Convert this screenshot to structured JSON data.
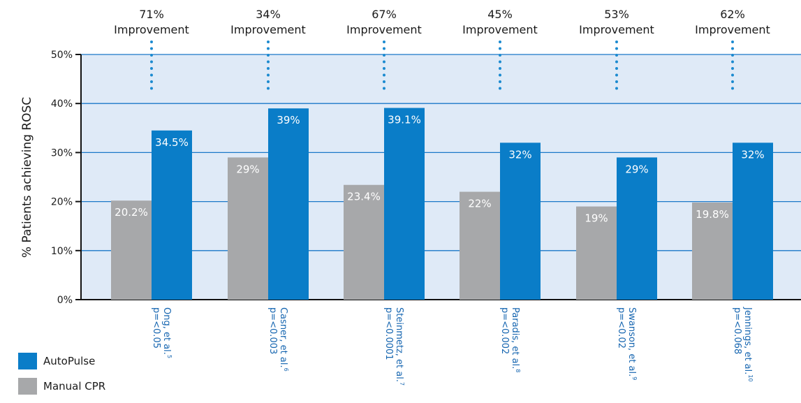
{
  "chart_data": {
    "type": "bar",
    "ylabel": "% Patients achieving ROSC",
    "ylim": [
      0,
      50
    ],
    "yticks": [
      {
        "value": 0,
        "label": "0%"
      },
      {
        "value": 10,
        "label": "10%"
      },
      {
        "value": 20,
        "label": "20%"
      },
      {
        "value": 30,
        "label": "30%"
      },
      {
        "value": 40,
        "label": "40%"
      },
      {
        "value": 50,
        "label": "50%"
      }
    ],
    "grid": true,
    "legend_position": "bottom-left",
    "colors": {
      "plot_background": "#dfeaf7",
      "gridline": "#1b78c8",
      "axis": "#111111",
      "dotted_connector": "#1b8ad0"
    },
    "categories": [
      {
        "name": "Ong, et al.",
        "ref": "5",
        "p": "p=<0.05",
        "improvement_pct": "71%",
        "improvement_word": "Improvement"
      },
      {
        "name": "Casner, et al.",
        "ref": "6",
        "p": "p=<0.003",
        "improvement_pct": "34%",
        "improvement_word": "Improvement"
      },
      {
        "name": "Steinmetz, et al.",
        "ref": "7",
        "p": "p=<0.0001",
        "improvement_pct": "67%",
        "improvement_word": "Improvement"
      },
      {
        "name": "Paradis, et al.",
        "ref": "8",
        "p": "p=<0.002",
        "improvement_pct": "45%",
        "improvement_word": "Improvement"
      },
      {
        "name": "Swanson, et al.",
        "ref": "9",
        "p": "p=<0.02",
        "improvement_pct": "53%",
        "improvement_word": "Improvement"
      },
      {
        "name": "Jennings, et al.",
        "ref": "10",
        "p": "p=<0.068",
        "improvement_pct": "62%",
        "improvement_word": "Improvement"
      }
    ],
    "series": [
      {
        "name": "Manual CPR",
        "color": "#a7a8aa",
        "values": [
          20.2,
          29,
          23.4,
          22,
          19,
          19.8
        ],
        "labels": [
          "20.2%",
          "29%",
          "23.4%",
          "22%",
          "19%",
          "19.8%"
        ]
      },
      {
        "name": "AutoPulse",
        "color": "#0a7dc8",
        "values": [
          34.5,
          39,
          39.1,
          32,
          29,
          32
        ],
        "labels": [
          "34.5%",
          "39%",
          "39.1%",
          "32%",
          "29%",
          "32%"
        ]
      }
    ]
  },
  "legend": {
    "items": [
      {
        "label": "AutoPulse",
        "color": "#0a7dc8"
      },
      {
        "label": "Manual CPR",
        "color": "#a7a8aa"
      }
    ]
  }
}
